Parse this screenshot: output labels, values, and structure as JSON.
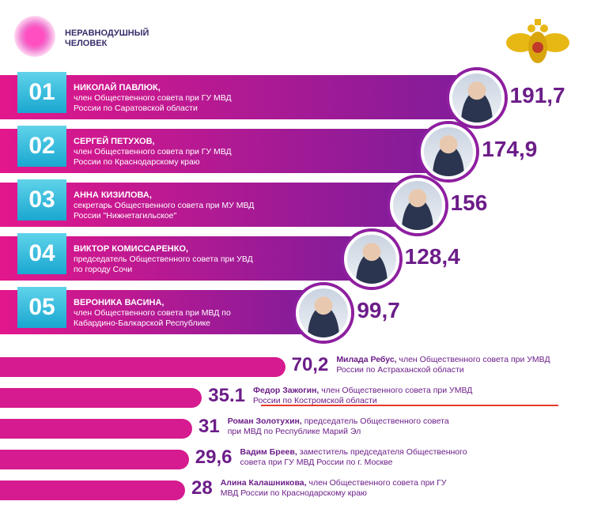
{
  "chart_data": {
    "type": "bar",
    "brand": [
      "НЕРАВНОДУШНЫЙ",
      "ЧЕЛОВЕК"
    ],
    "ranks": [
      "01",
      "02",
      "03",
      "04",
      "05",
      null,
      null,
      null,
      null,
      null
    ],
    "categories": [
      "НИКОЛАЙ ПАВЛЮК,",
      "СЕРГЕЙ ПЕТУХОВ,",
      "АННА КИЗИЛОВА,",
      "ВИКТОР КОМИССАРЕНКО,",
      "ВЕРОНИКА ВАСИНА,",
      "Милада Ребус,",
      "Федор Зажогин,",
      "Роман Золотухин,",
      "Вадим Бреев,",
      "Алина Калашникова,"
    ],
    "descriptions": [
      "член Общественного совета при ГУ МВД России по Саратовской области",
      "член Общественного совета при ГУ МВД России по Краснодарскому краю",
      "секретарь Общественного совета при МУ МВД России \"Нижнетагильское\"",
      "председатель Общественного совета при УВД по городу Сочи",
      "член Общественного совета при МВД по Кабардино-Балкарской Республике",
      "член Общественного совета при УМВД России по Астраханской области",
      "член Общественного совета при УМВД России по Костромской области",
      "председатель Общественного совета при МВД по Республике Марий Эл",
      "заместитель председателя Общественного совета при ГУ МВД России  по г. Москве",
      "член Общественного совета при ГУ МВД России по Краснодарскому краю"
    ],
    "values": [
      191.7,
      174.9,
      156,
      128.4,
      99.7,
      70.2,
      35.1,
      31,
      29.6,
      28
    ],
    "value_labels": [
      "191,7",
      "174,9",
      "156",
      "128,4",
      "99,7",
      "70,2",
      "35.1",
      "31",
      "29,6",
      "28"
    ],
    "color": "#d61a8f"
  }
}
